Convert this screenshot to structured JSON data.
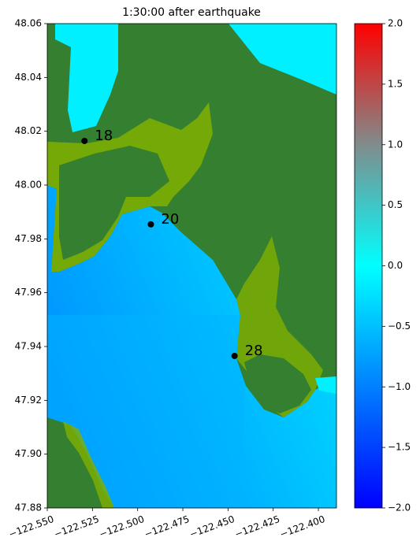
{
  "chart_data": {
    "type": "scatter",
    "title": "1:30:00 after earthquake",
    "xlim": [
      -122.55,
      -122.39
    ],
    "ylim": [
      47.88,
      48.06
    ],
    "xticks": [
      {
        "value": -122.55,
        "label": "−122.550"
      },
      {
        "value": -122.525,
        "label": "−122.525"
      },
      {
        "value": -122.5,
        "label": "−122.500"
      },
      {
        "value": -122.475,
        "label": "−122.475"
      },
      {
        "value": -122.45,
        "label": "−122.450"
      },
      {
        "value": -122.425,
        "label": "−122.425"
      },
      {
        "value": -122.4,
        "label": "−122.400"
      }
    ],
    "yticks": [
      {
        "value": 47.88,
        "label": "47.88"
      },
      {
        "value": 47.9,
        "label": "47.90"
      },
      {
        "value": 47.92,
        "label": "47.92"
      },
      {
        "value": 47.94,
        "label": "47.94"
      },
      {
        "value": 47.96,
        "label": "47.96"
      },
      {
        "value": 47.98,
        "label": "47.98"
      },
      {
        "value": 48.0,
        "label": "48.00"
      },
      {
        "value": 48.02,
        "label": "48.02"
      },
      {
        "value": 48.04,
        "label": "48.04"
      },
      {
        "value": 48.06,
        "label": "48.06"
      }
    ],
    "points": [
      {
        "label": "18",
        "x": -122.5294,
        "y": 48.0164
      },
      {
        "label": "20",
        "x": -122.4927,
        "y": 47.9854
      },
      {
        "label": "28",
        "x": -122.4464,
        "y": 47.9365
      }
    ],
    "color": "#000000",
    "colorbar": {
      "range": [
        -2.0,
        2.0
      ],
      "ticks": [
        {
          "value": -2.0,
          "label": "−2.0"
        },
        {
          "value": -1.5,
          "label": "−1.5"
        },
        {
          "value": -1.0,
          "label": "−1.0"
        },
        {
          "value": -0.5,
          "label": "−0.5"
        },
        {
          "value": 0.0,
          "label": "0.0"
        },
        {
          "value": 0.5,
          "label": "0.5"
        },
        {
          "value": 1.0,
          "label": "1.0"
        },
        {
          "value": 1.5,
          "label": "1.5"
        },
        {
          "value": 2.0,
          "label": "2.0"
        }
      ]
    }
  }
}
